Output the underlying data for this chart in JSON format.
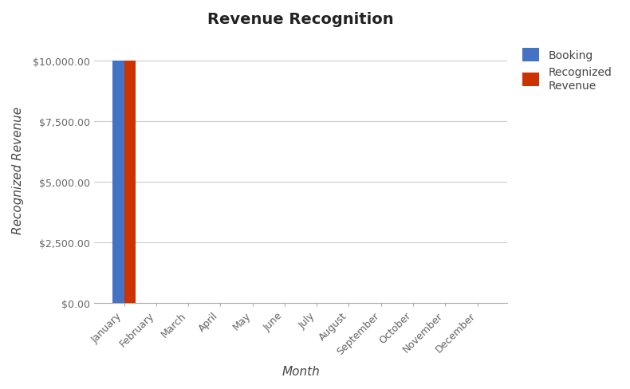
{
  "title": "Revenue Recognition",
  "xlabel": "Month",
  "ylabel": "Recognized Revenue",
  "months": [
    "January",
    "February",
    "March",
    "April",
    "May",
    "June",
    "July",
    "August",
    "September",
    "October",
    "November",
    "December"
  ],
  "booking_values": [
    10000,
    0,
    0,
    0,
    0,
    0,
    0,
    0,
    0,
    0,
    0,
    0
  ],
  "recognized_values": [
    10000,
    0,
    0,
    0,
    0,
    0,
    0,
    0,
    0,
    0,
    0,
    0
  ],
  "booking_color": "#4472C4",
  "recognized_color": "#CC3300",
  "ylim": [
    0,
    11000
  ],
  "yticks": [
    0,
    2500,
    5000,
    7500,
    10000
  ],
  "bar_width": 0.35,
  "background_color": "#ffffff",
  "grid_color": "#cccccc",
  "title_fontsize": 14,
  "axis_label_fontsize": 11,
  "tick_fontsize": 9,
  "legend_labels": [
    "Booking",
    "Recognized\nRevenue"
  ]
}
